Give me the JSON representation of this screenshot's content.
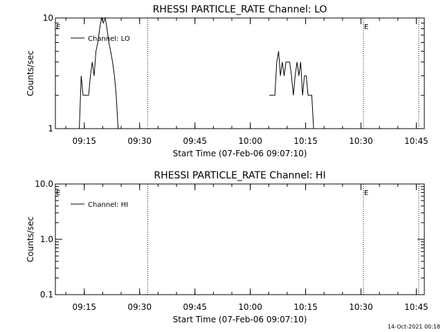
{
  "footer": {
    "timestamp": "14-Oct-2021 00:18"
  },
  "chart_data": [
    {
      "type": "line",
      "title": "RHESSI PARTICLE_RATE Channel: LO",
      "xlabel": "Start Time (07-Feb-06 09:07:10)",
      "ylabel": "Counts/sec",
      "yscale": "log",
      "ylim": [
        1,
        10
      ],
      "ytick_values": [
        1,
        10
      ],
      "ytick_labels": [
        "1",
        "10"
      ],
      "xlim": [
        "09:07:10",
        "10:47:10"
      ],
      "xticks": [
        "09:15",
        "09:30",
        "09:45",
        "10:00",
        "10:15",
        "10:30",
        "10:45"
      ],
      "xtick_minutes": [
        7.833,
        22.833,
        37.833,
        52.833,
        67.833,
        82.833,
        97.833
      ],
      "legend": {
        "label": "Channel: LO",
        "position": "top-left"
      },
      "vlines_minutes": [
        0,
        25,
        83.5,
        98.5
      ],
      "event_markers": [
        {
          "label": "E",
          "minute": 0
        },
        {
          "label": "E",
          "minute": 83.5
        }
      ],
      "series": [
        {
          "x_minutes": [
            6.5,
            7.0,
            7.5,
            8.0,
            8.5,
            9.0,
            9.5,
            10.0,
            10.5,
            11.0,
            11.5,
            12.0,
            12.5,
            13.0,
            13.5,
            14.0,
            14.5,
            15.0,
            15.5,
            16.0,
            16.5,
            17.0,
            17.5,
            18.0,
            18.5,
            19.0,
            19.5,
            20.0,
            20.5,
            57.5,
            58.0,
            58.5,
            59.0,
            59.5,
            60.0,
            60.5,
            61.0,
            61.5,
            62.0,
            62.5,
            63.0,
            63.5,
            64.0,
            64.5,
            65.0,
            65.5,
            66.0,
            66.5,
            67.0,
            67.5,
            68.0,
            68.5,
            69.0,
            69.5,
            70.0
          ],
          "values": [
            1,
            3,
            2,
            2,
            2,
            2,
            3,
            4,
            3,
            5,
            6,
            8,
            10,
            9,
            10,
            8,
            6,
            5,
            4,
            3,
            2,
            1,
            null,
            null,
            null,
            null,
            null,
            null,
            null,
            null,
            2,
            2,
            2,
            2,
            4,
            5,
            3,
            4,
            3,
            4,
            4,
            4,
            3,
            2,
            3,
            4,
            3,
            4,
            2,
            3,
            3,
            2,
            2,
            2,
            1
          ]
        }
      ]
    },
    {
      "type": "line",
      "title": "RHESSI PARTICLE_RATE Channel: HI",
      "xlabel": "Start Time (07-Feb-06 09:07:10)",
      "ylabel": "Counts/sec",
      "yscale": "log",
      "ylim": [
        0.1,
        10
      ],
      "ytick_values": [
        0.1,
        1,
        10
      ],
      "ytick_labels": [
        "0.1",
        "1.0",
        "10.0"
      ],
      "xlim": [
        "09:07:10",
        "10:47:10"
      ],
      "xticks": [
        "09:15",
        "09:30",
        "09:45",
        "10:00",
        "10:15",
        "10:30",
        "10:45"
      ],
      "xtick_minutes": [
        7.833,
        22.833,
        37.833,
        52.833,
        67.833,
        82.833,
        97.833
      ],
      "legend": {
        "label": "Channel: HI",
        "position": "top-left"
      },
      "vlines_minutes": [
        0,
        25,
        83.5,
        98.5
      ],
      "event_markers": [
        {
          "label": "E",
          "minute": 0
        },
        {
          "label": "E",
          "minute": 83.5
        }
      ],
      "series": [
        {
          "x_minutes": [],
          "values": []
        }
      ]
    }
  ]
}
